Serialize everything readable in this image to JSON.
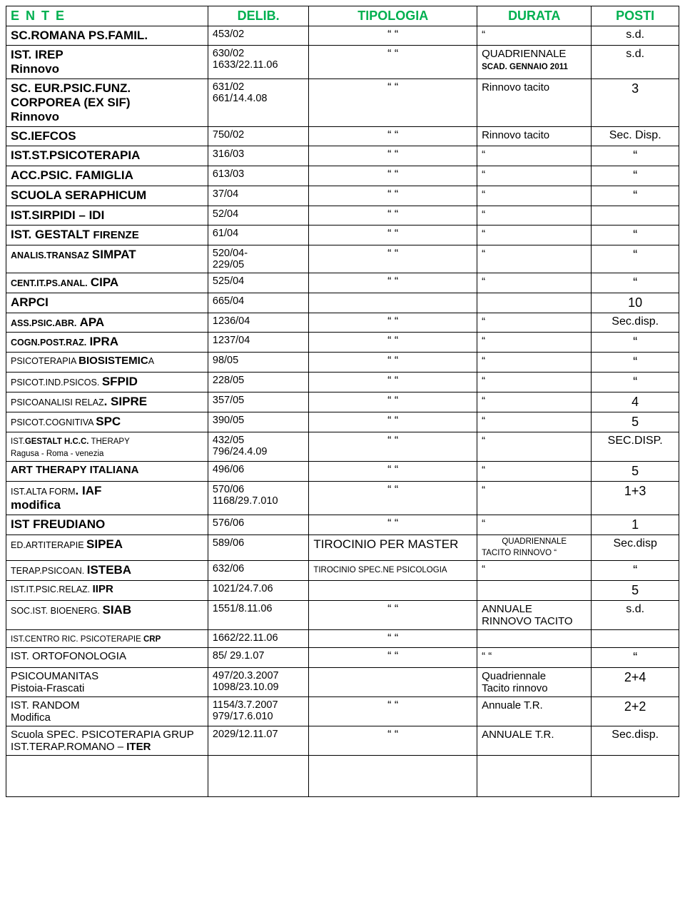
{
  "headers": {
    "ente": "E N T E",
    "delib": "DELIB.",
    "tipologia": "TIPOLOGIA",
    "durata": "DURATA",
    "posti": "POSTI"
  },
  "rows": [
    {
      "ente_html": "<span class='l1'>SC.ROMANA PS.FAMIL.</span>",
      "delib": "453/02",
      "tipo": "“           “",
      "durata": "“",
      "posti": "s.d."
    },
    {
      "ente_html": "<span class='l1'>IST. IREP</span><br><span class='l1'>Rinnovo</span>",
      "delib": "630/02\n1633/22.11.06",
      "tipo": "“       “",
      "durata_html": "QUADRIENNALE<br><span class='bold smaller'>SCAD. GENNAIO 2011</span>",
      "posti": "s.d."
    },
    {
      "ente_html": "<span class='l1'>SC. EUR.PSIC.FUNZ.<br>CORPOREA (EX SIF)<br>Rinnovo</span>",
      "delib": "631/02\n661/14.4.08",
      "tipo": "“           “",
      "durata": "Rinnovo tacito",
      "posti": "3"
    },
    {
      "ente_html": "<span class='l1'>SC.IEFCOS</span>",
      "delib": "750/02",
      "tipo": "“           “",
      "durata": "Rinnovo tacito",
      "posti": "Sec. Disp."
    },
    {
      "ente_html": "<span class='l1'>IST.ST.PSICOTERAPIA</span>",
      "delib": "316/03",
      "tipo": "“           “",
      "durata": "“",
      "posti": "“"
    },
    {
      "ente_html": "<span class='l1'>ACC.PSIC. FAMIGLIA</span>",
      "delib": "613/03",
      "tipo": "“           “",
      "durata": "“",
      "posti": "“"
    },
    {
      "ente_html": "<span class='l1'>SCUOLA SERAPHICUM</span>",
      "delib": "37/04",
      "tipo": "“           “",
      "durata": "“",
      "posti": "“"
    },
    {
      "ente_html": "<span class='l1'>IST.SIRPIDI – IDI</span>",
      "delib": "52/04",
      "tipo": "“       “",
      "durata": "“",
      "posti": ""
    },
    {
      "ente_html": "<span class='l1'>IST. GESTALT </span><span class='bold'>FIRENZE</span>",
      "delib": "61/04",
      "tipo": "“       “",
      "durata": "“",
      "posti": "“"
    },
    {
      "ente_html": "<span class='bold small'>ANALIS.TRANSAZ</span> <span class='l1'>SIMPAT</span>",
      "delib": "520/04-\n229/05",
      "tipo": "“      “",
      "durata": "“",
      "posti": "“"
    },
    {
      "ente_html": "<span class='bold small'>CENT.IT.PS.ANAL.</span> <span class='l1'>CIPA</span>",
      "delib": "525/04",
      "tipo": "“        “",
      "durata": "“",
      "posti": "“"
    },
    {
      "ente_html": "<span class='l1'>ARPCI</span>",
      "delib": "665/04",
      "tipo": "",
      "durata": "",
      "posti": "10"
    },
    {
      "ente_html": "<span class='bold small'>ASS.PSIC.ABR.</span> <span class='l1'>APA</span>",
      "delib": "1236/04",
      "tipo": "“        “",
      "durata": "“",
      "posti": "Sec.disp."
    },
    {
      "ente_html": "<span class='bold small'>COGN.POST.RAZ.</span> <span class='l1'>IPRA</span>",
      "delib": "1237/04",
      "tipo": "“        “",
      "durata": "“",
      "posti": "“"
    },
    {
      "ente_html": "<span class='small'>PSICOTERAPIA </span><span class='bold'>BIOSISTEMIC</span><span class='small'>A</span>",
      "delib": "98/05",
      "tipo": "“        “",
      "durata": "“",
      "posti": "“"
    },
    {
      "ente_html": "<span class='small'>PSICOT.IND.PSICOS. </span><span class='l1'>SFPID</span>",
      "delib": "228/05",
      "tipo": "“        “",
      "durata": "“",
      "posti": "“"
    },
    {
      "ente_html": "<span class='small'>PSICOANALISI RELAZ</span><span class='l1'>. SIPRE</span>",
      "delib": "357/05",
      "tipo": "“        “",
      "durata": "“",
      "posti": "4"
    },
    {
      "ente_html": "<span class='small'>PSICOT.COGNITIVA </span><span class='l1'>SPC</span>",
      "delib": "390/05",
      "tipo": "“        “",
      "durata": "“",
      "posti": "5"
    },
    {
      "ente_html": "<span class='smaller'>IST.<b>GESTALT H.C.C.</b> THERAPY<br>Ragusa -  Roma - venezia</span>",
      "delib": "432/05\n796/24.4.09",
      "tipo": "“        “",
      "durata": "“",
      "posti": "SEC.DISP."
    },
    {
      "ente_html": "<span class='bold'>ART THERAPY ITALIANA</span>",
      "delib": "496/06",
      "tipo": "“           “",
      "durata": "“",
      "posti": "5"
    },
    {
      "ente_html": "<span class='small'>IST.ALTA FORM</span><span class='l1'>. IAF</span><br><span class='l1'>modifica</span>",
      "delib": "570/06\n1168/29.7.010",
      "tipo": "“        “",
      "durata": "“",
      "posti": "1+3"
    },
    {
      "ente_html": "<span class='l1'>IST FREUDIANO</span>",
      "delib": "576/06",
      "tipo": "“           “",
      "durata": "“",
      "posti": "1"
    },
    {
      "ente_html": "<span class='small'>ED.ARTITERAPIE </span><span class='l1'>SIPEA</span>",
      "delib": "589/06",
      "tipo_html": "<span style='font-size:17px'>TIROCINIO PER MASTER</span>",
      "durata_html": "<span class='smaller center' style='display:block'>QUADRIENNALE</span><span class='smaller'>TACITO RINNOVO  “</span>",
      "posti": "Sec.disp"
    },
    {
      "ente_html": "<span class='small'>TERAP.PSICOAN. </span><span class='l1'>ISTEBA</span>",
      "delib": "632/06",
      "tipo_html": "<span class='smaller'>TIROCINIO SPEC.NE PSICOLOGIA</span>",
      "durata": "“",
      "posti": "“"
    },
    {
      "ente_html": "<span class='small'>IST.IT.PSIC.RELAZ. </span><span class='bold'>IIPR</span>",
      "delib": "1021/24.7.06",
      "tipo": "",
      "durata": "",
      "posti": "5"
    },
    {
      "ente_html": "<span class='small'>SOC.IST. BIOENERG. </span><span class='l1'>SIAB</span>",
      "delib": "1551/8.11.06",
      "tipo": "“         “",
      "durata": "ANNUALE\nRINNOVO TACITO",
      "posti": "s.d."
    },
    {
      "ente_html": "<span class='smaller'>IST.CENTRO RIC. PSICOTERAPIE <b>CRP</b></span>",
      "delib": "1662/22.11.06",
      "tipo": "“        “",
      "durata": "",
      "posti": ""
    },
    {
      "ente_html": "<span class='mix'>IST. ORTOFONOLOGIA</span>",
      "delib": "85/ 29.1.07",
      "tipo": "“        “",
      "durata": "“         “",
      "posti": "“"
    },
    {
      "ente_html": "<span class='mix'>PSICOUMANITAS<br>Pistoia-Frascati</span>",
      "delib": "497/20.3.2007\n1098/23.10.09",
      "tipo": "",
      "durata": "Quadriennale\nTacito rinnovo",
      "posti": "2+4"
    },
    {
      "ente_html": "<span class='mix'>IST. RANDOM<br>Modifica</span>",
      "delib": "1154/3.7.2007\n979/17.6.010",
      "tipo": "“         “",
      "durata": "Annuale T.R.",
      "posti": "2+2"
    },
    {
      "ente_html": "<span class='mix'>Scuola SPEC. PSICOTERAPIA GRUP<br>IST.TERAP.ROMANO – <b>ITER</b></span>",
      "delib": "2029/12.11.07",
      "tipo": "“         “",
      "durata": "ANNUALE T.R.",
      "posti": "Sec.disp."
    },
    {
      "ente_html": "&nbsp;<br>&nbsp;<br>&nbsp;",
      "delib": "",
      "tipo": "",
      "durata": "",
      "posti": ""
    }
  ]
}
